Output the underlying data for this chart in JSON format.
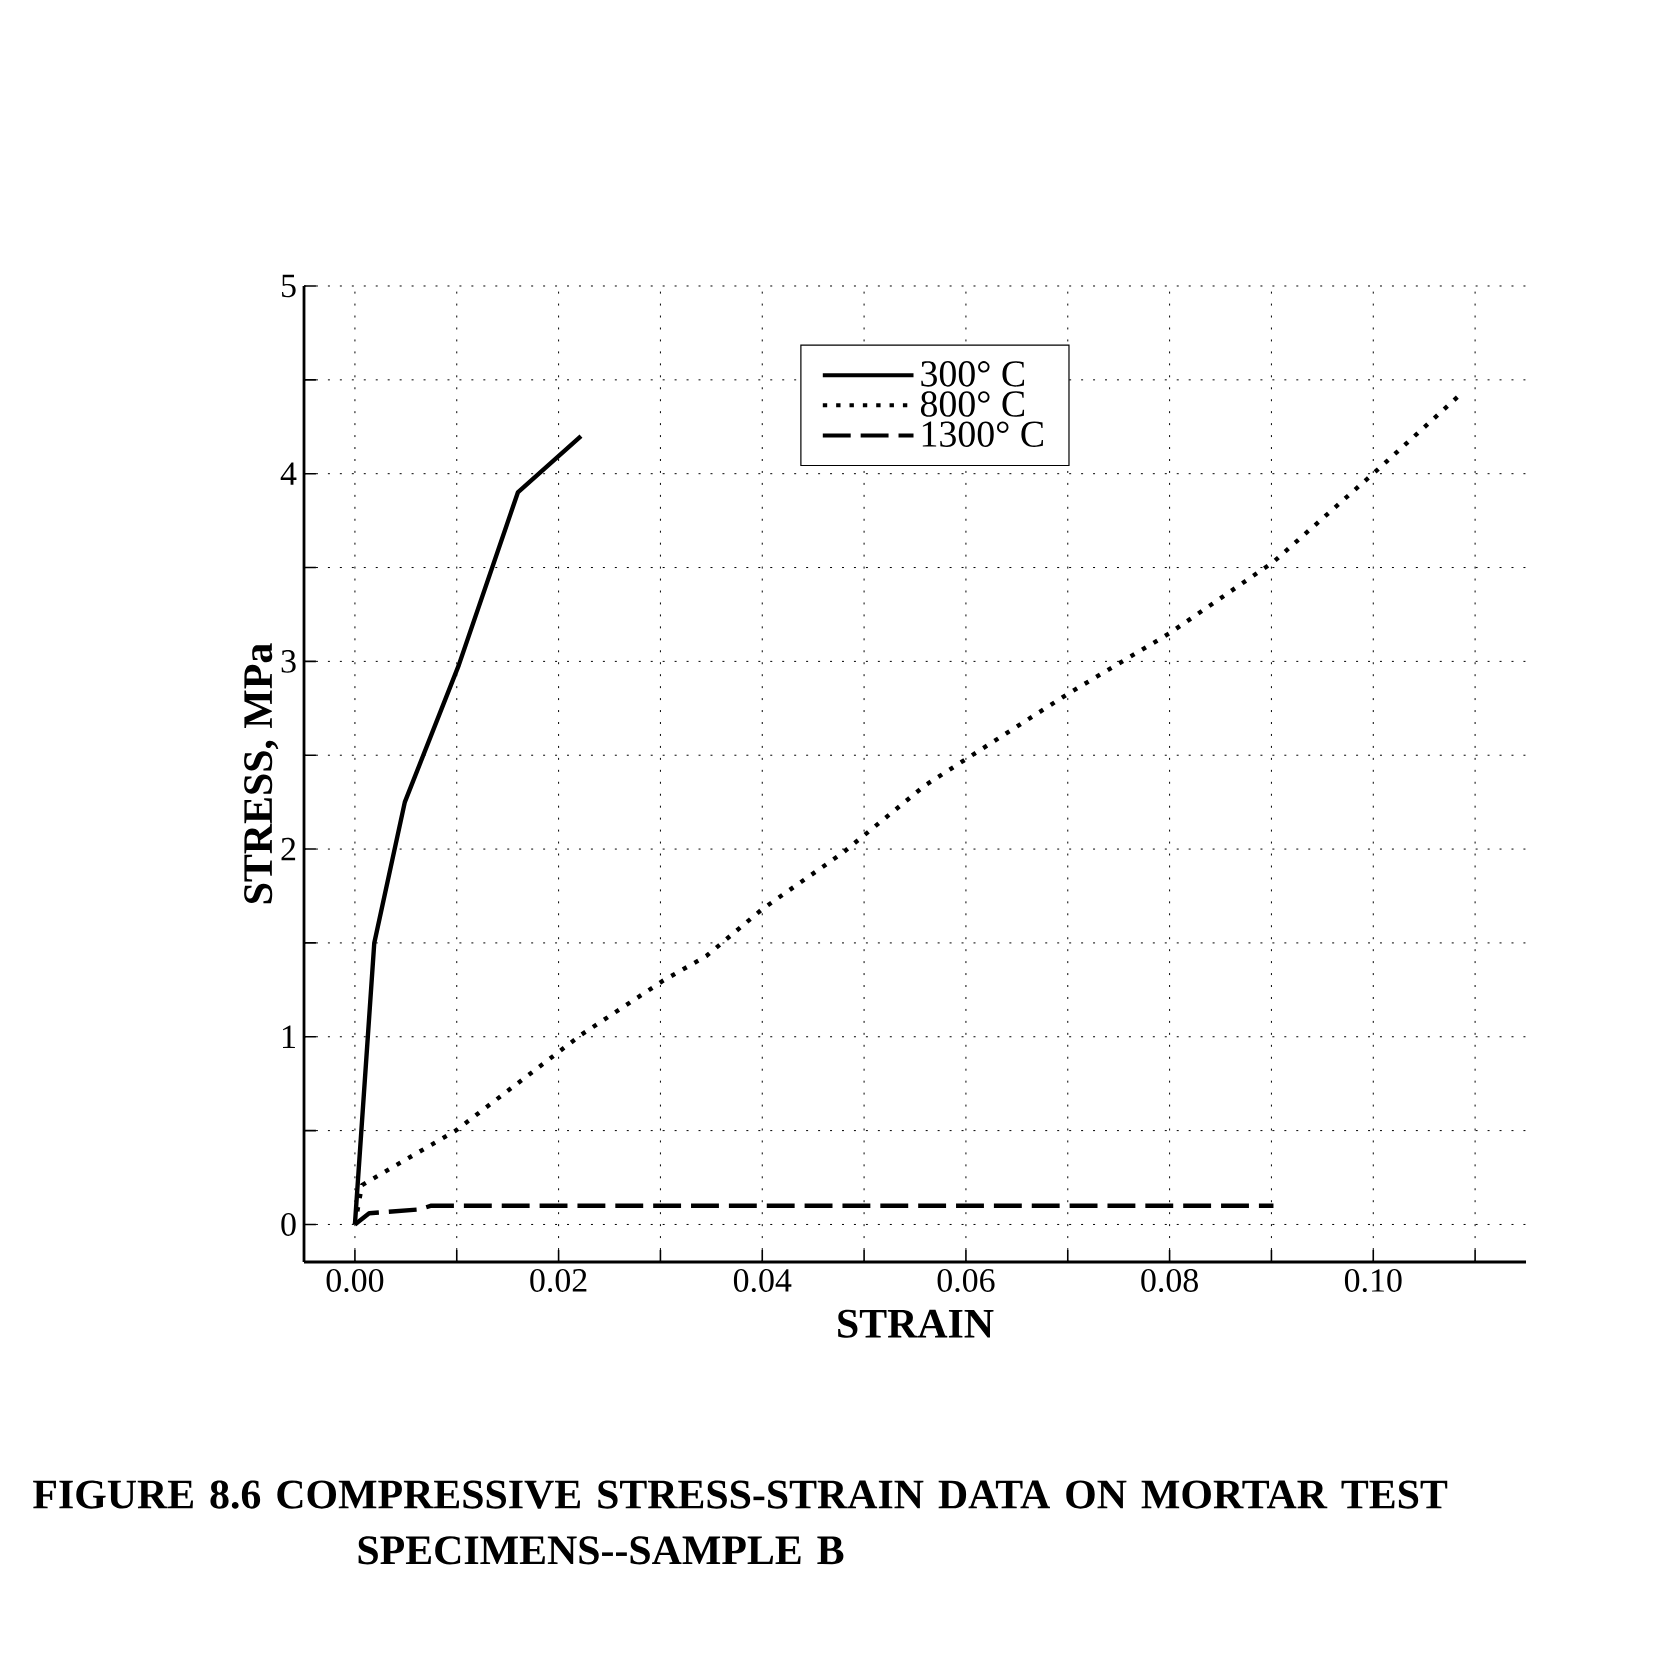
{
  "chart_data": {
    "type": "line",
    "xlabel": "STRAIN",
    "ylabel": "STRESS, MPa",
    "annotations": [
      "FIGURE 8.6 COMPRESSIVE STRESS-STRAIN DATA ON MORTAR TEST SPECIMENS--SAMPLE B"
    ],
    "xlim": [
      -0.005,
      0.115
    ],
    "ylim": [
      -0.2,
      5
    ],
    "xticks": [
      {
        "value": 0,
        "label": "0.00"
      },
      {
        "value": 0.01,
        "label": null
      },
      {
        "value": 0.02,
        "label": "0.02"
      },
      {
        "value": 0.03,
        "label": null
      },
      {
        "value": 0.04,
        "label": "0.04"
      },
      {
        "value": 0.05,
        "label": null
      },
      {
        "value": 0.06,
        "label": "0.06"
      },
      {
        "value": 0.07,
        "label": null
      },
      {
        "value": 0.08,
        "label": "0.08"
      },
      {
        "value": 0.09,
        "label": null
      },
      {
        "value": 0.1,
        "label": "0.10"
      },
      {
        "value": 0.11,
        "label": null
      }
    ],
    "yticks": [
      0,
      {
        "value": 0.5,
        "label": null
      },
      1,
      {
        "value": 1.5,
        "label": null
      },
      2,
      {
        "value": 2.5,
        "label": null
      },
      3,
      {
        "value": 3.5,
        "label": null
      },
      4,
      {
        "value": 4.5,
        "label": null
      },
      5
    ],
    "grid": true,
    "legend": "top",
    "marker": "none",
    "series": [
      {
        "name": "300° C",
        "color": "#000000",
        "line_style": "solid",
        "x": [
          0,
          0.0019,
          0.0049,
          0.0102,
          0.016,
          0.0222
        ],
        "values": [
          0,
          1.5,
          2.25,
          2.98,
          3.9,
          4.2
        ]
      },
      {
        "name": "800° C",
        "color": "#000000",
        "line_style": "dotted",
        "x": [
          0,
          0.0007,
          0.0099,
          0.0222,
          0.0303,
          0.0345,
          0.04,
          0.0479,
          0.056,
          0.0701,
          0.08,
          0.0902,
          0.1004,
          0.1089
        ],
        "values": [
          0,
          0.21,
          0.5,
          1.01,
          1.3,
          1.43,
          1.68,
          1.98,
          2.34,
          2.83,
          3.15,
          3.53,
          4.02,
          4.44
        ]
      },
      {
        "name": "1300° C",
        "color": "#000000",
        "line_style": "dashed",
        "x": [
          0,
          0.0014,
          0.0063,
          0.0075,
          0.0902
        ],
        "values": [
          0,
          0.06,
          0.08,
          0.1,
          0.1
        ]
      }
    ]
  }
}
